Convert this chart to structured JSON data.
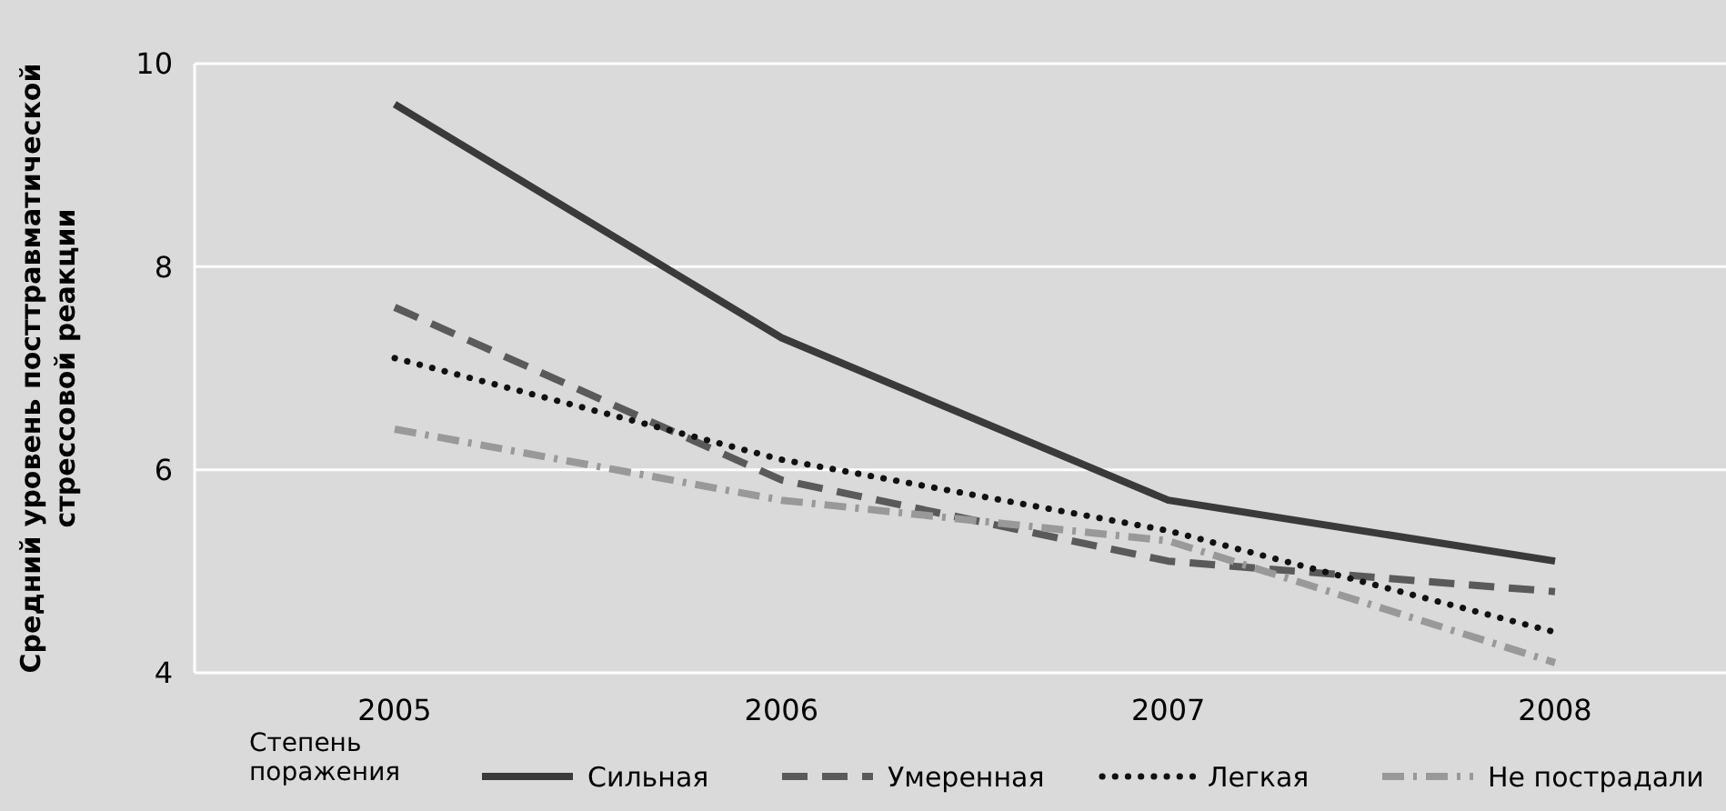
{
  "chart_data": {
    "type": "line",
    "ylabel": "Средний уровень посттравматической стрессовой реакции",
    "legend_title": "Степень поражения",
    "categories": [
      "2005",
      "2006",
      "2007",
      "2008"
    ],
    "series": [
      {
        "name": "Сильная",
        "color": "#3a3a3a",
        "line_style": "solid",
        "values": [
          9.6,
          7.3,
          5.7,
          5.1
        ]
      },
      {
        "name": "Умеренная",
        "color": "#5a5a5a",
        "line_style": "dashed",
        "values": [
          7.6,
          5.9,
          5.1,
          4.8
        ]
      },
      {
        "name": "Легкая",
        "color": "#111111",
        "line_style": "dotted",
        "values": [
          7.1,
          6.1,
          5.4,
          4.4
        ]
      },
      {
        "name": "Не пострадали",
        "color": "#999999",
        "line_style": "dashdot",
        "values": [
          6.4,
          5.7,
          5.3,
          4.1
        ]
      }
    ],
    "ylim": [
      4,
      10
    ],
    "yticks": [
      4,
      6,
      8,
      10
    ],
    "grid": "y",
    "legend": "bottom"
  }
}
